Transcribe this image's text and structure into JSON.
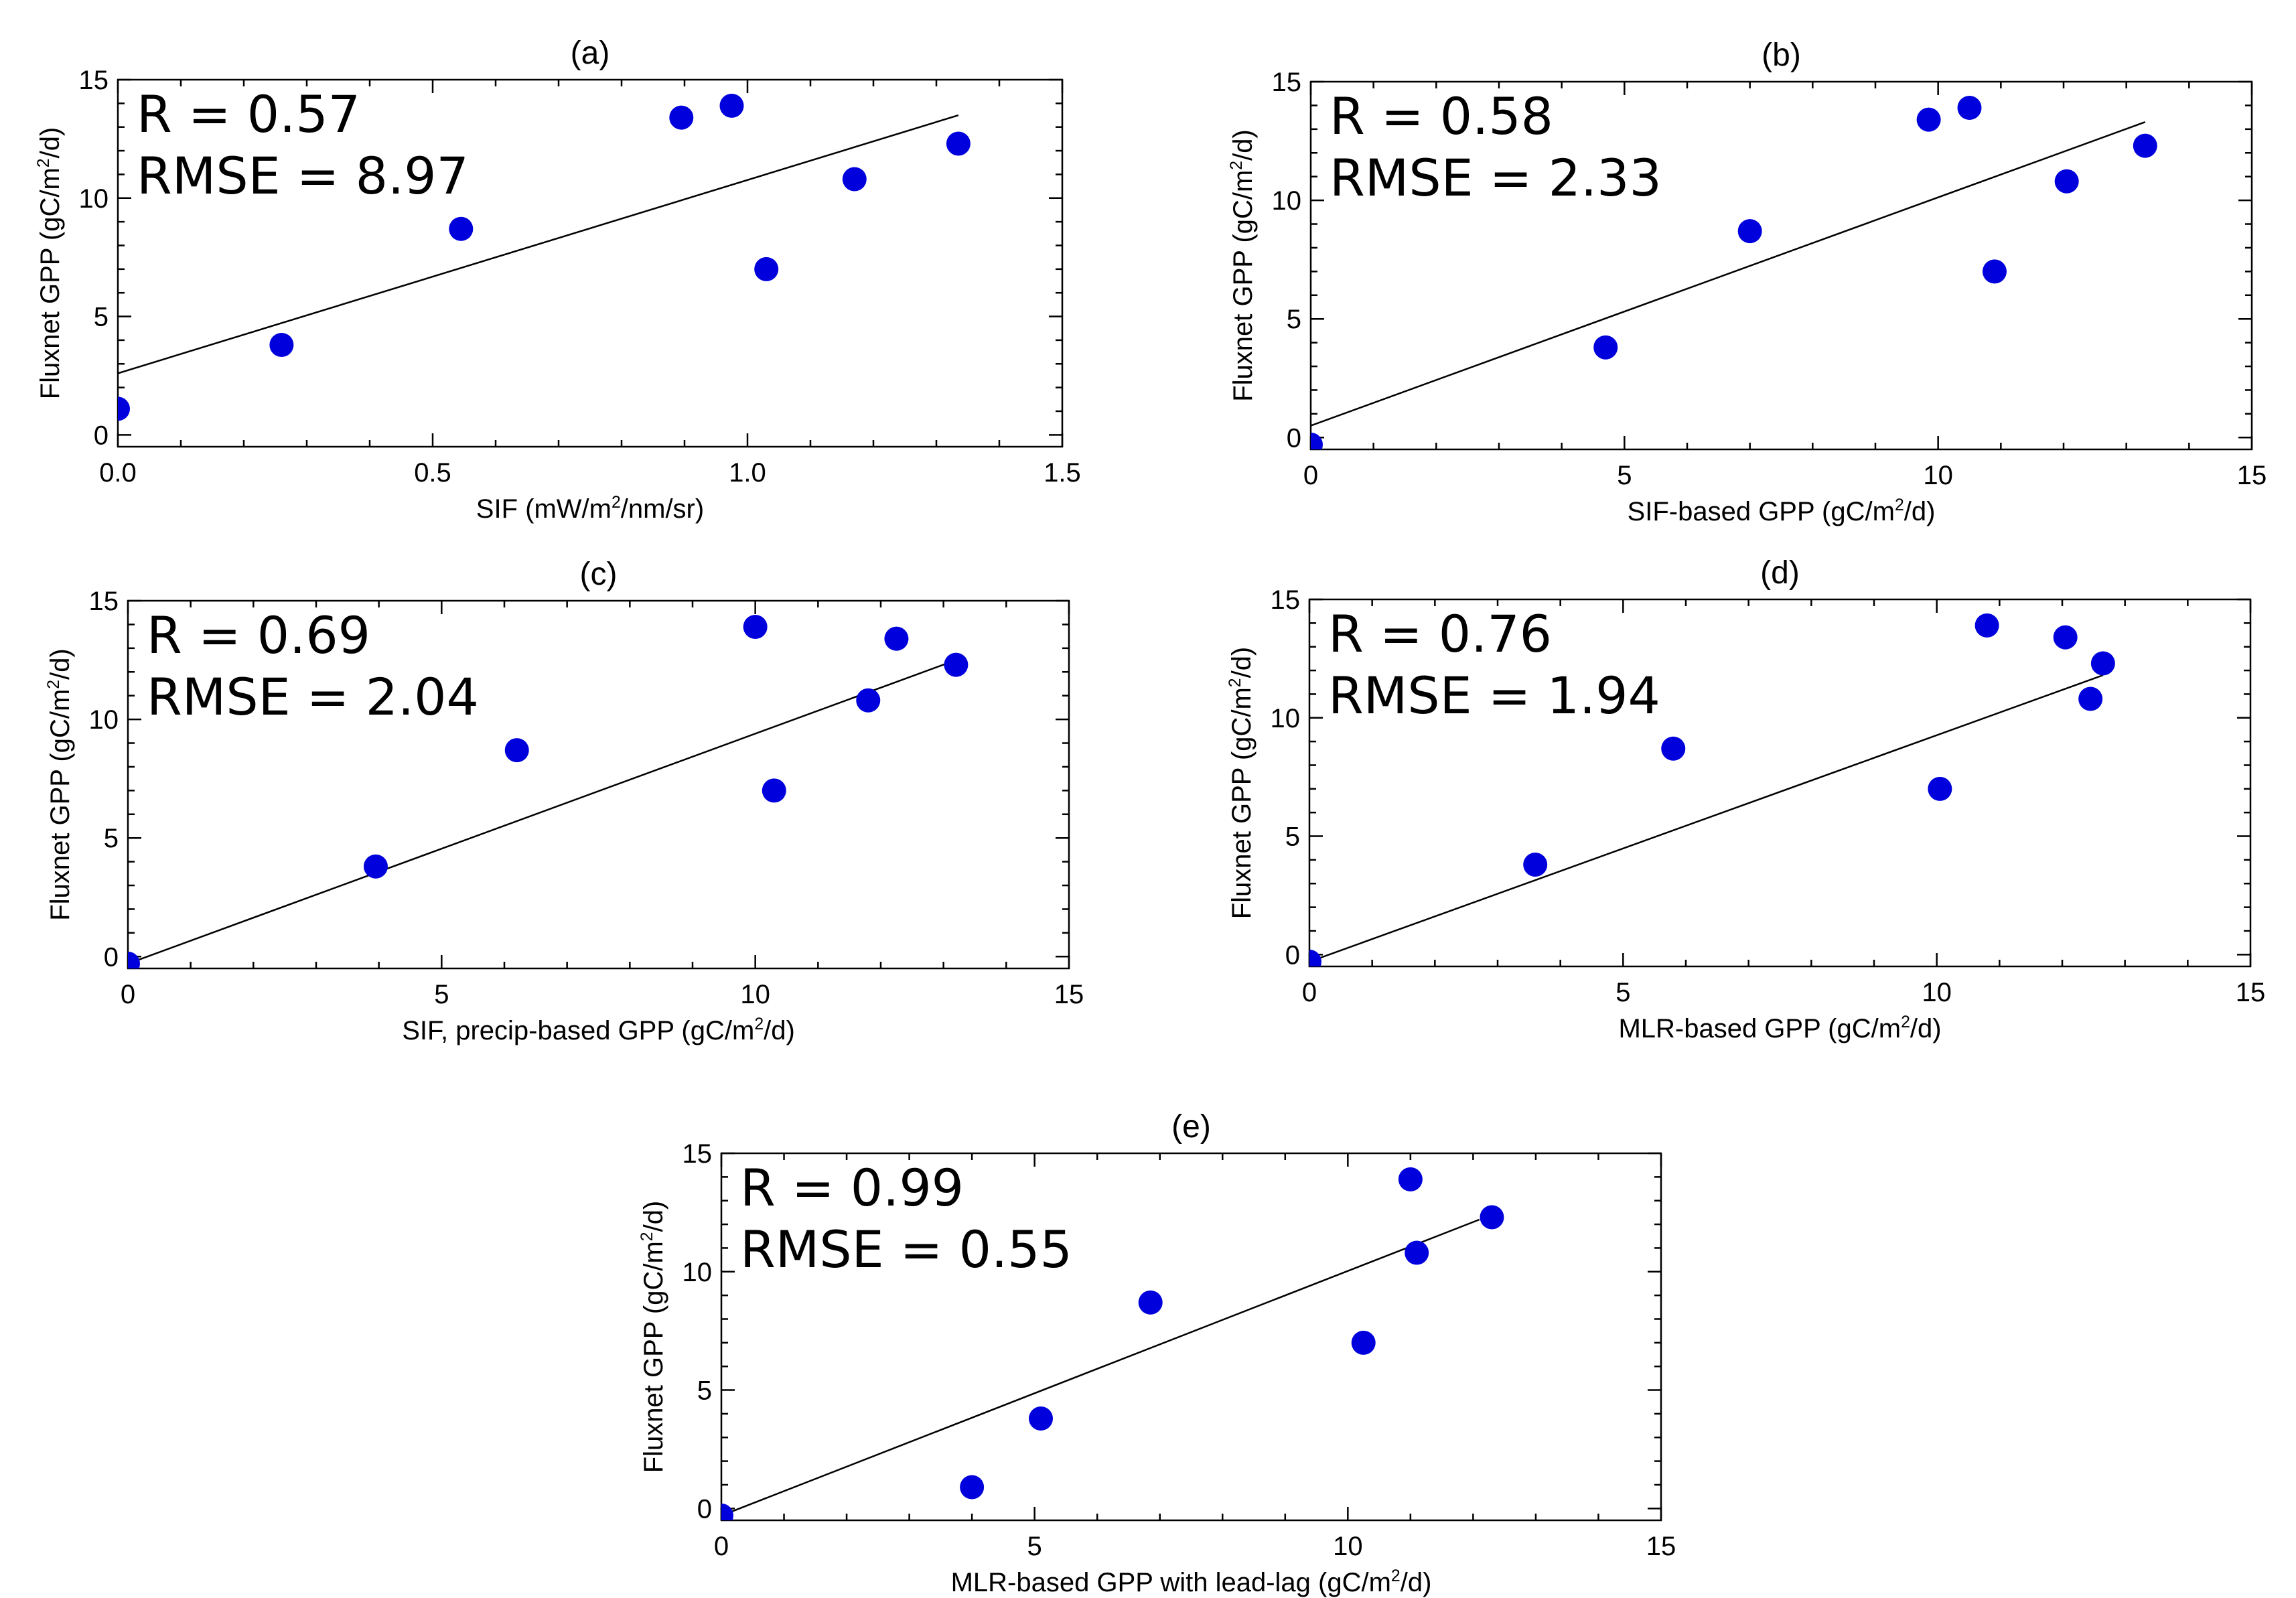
{
  "colors": {
    "point": "#0000dd",
    "axis": "#000000",
    "background": "#ffffff"
  },
  "chart_data": [
    {
      "type": "scatter",
      "title": "(a)",
      "xlabel": {
        "pre": "SIF (mW/m",
        "sup": "2",
        "post": "/nm/sr)"
      },
      "ylabel": {
        "pre": "Fluxnet GPP (gC/m",
        "sup": "2",
        "post": "/d)"
      },
      "xlim": [
        0,
        1.5
      ],
      "ylim": [
        -0.5,
        15
      ],
      "xticks": [
        0.0,
        0.5,
        1.0,
        1.5
      ],
      "xticklabels": [
        "0.0",
        "0.5",
        "1.0",
        "1.5"
      ],
      "yticks": [
        0,
        5,
        10,
        15
      ],
      "yticklabels": [
        "0",
        "5",
        "10",
        "15"
      ],
      "stats": {
        "r": "R = 0.57",
        "rmse": "RMSE = 8.97"
      },
      "x": [
        0.0,
        0.26,
        0.545,
        0.895,
        0.975,
        1.03,
        1.17,
        1.335
      ],
      "y": [
        1.1,
        3.8,
        8.7,
        13.4,
        13.9,
        7.0,
        10.8,
        12.3
      ],
      "fit": {
        "x": [
          0.0,
          1.335
        ],
        "y": [
          2.6,
          13.5
        ]
      }
    },
    {
      "type": "scatter",
      "title": "(b)",
      "xlabel": {
        "pre": "SIF-based GPP (gC/m",
        "sup": "2",
        "post": "/d)"
      },
      "ylabel": {
        "pre": "Fluxnet GPP (gC/m",
        "sup": "2",
        "post": "/d)"
      },
      "xlim": [
        0,
        15
      ],
      "ylim": [
        -0.5,
        15
      ],
      "xticks": [
        0,
        5,
        10,
        15
      ],
      "xticklabels": [
        "0",
        "5",
        "10",
        "15"
      ],
      "yticks": [
        0,
        5,
        10,
        15
      ],
      "yticklabels": [
        "0",
        "5",
        "10",
        "15"
      ],
      "stats": {
        "r": "R = 0.58",
        "rmse": "RMSE = 2.33"
      },
      "x": [
        0.0,
        4.7,
        7.0,
        9.85,
        10.5,
        10.9,
        12.05,
        13.3
      ],
      "y": [
        -0.3,
        3.8,
        8.7,
        13.4,
        13.9,
        7.0,
        10.8,
        12.3
      ],
      "fit": {
        "x": [
          0.0,
          13.3
        ],
        "y": [
          0.5,
          13.3
        ]
      }
    },
    {
      "type": "scatter",
      "title": "(c)",
      "xlabel": {
        "pre": "SIF, precip-based GPP (gC/m",
        "sup": "2",
        "post": "/d)"
      },
      "ylabel": {
        "pre": "Fluxnet GPP (gC/m",
        "sup": "2",
        "post": "/d)"
      },
      "xlim": [
        0,
        15
      ],
      "ylim": [
        -0.5,
        15
      ],
      "xticks": [
        0,
        5,
        10,
        15
      ],
      "xticklabels": [
        "0",
        "5",
        "10",
        "15"
      ],
      "yticks": [
        0,
        5,
        10,
        15
      ],
      "yticklabels": [
        "0",
        "5",
        "10",
        "15"
      ],
      "stats": {
        "r": "R = 0.69",
        "rmse": "RMSE = 2.04"
      },
      "x": [
        0.0,
        3.95,
        6.2,
        10.0,
        10.3,
        11.8,
        12.25,
        13.2
      ],
      "y": [
        -0.3,
        3.8,
        8.7,
        13.9,
        7.0,
        10.8,
        13.4,
        12.3
      ],
      "fit": {
        "x": [
          0.0,
          13.2
        ],
        "y": [
          -0.3,
          12.5
        ]
      }
    },
    {
      "type": "scatter",
      "title": "(d)",
      "xlabel": {
        "pre": "MLR-based GPP (gC/m",
        "sup": "2",
        "post": "/d)"
      },
      "ylabel": {
        "pre": "Fluxnet GPP (gC/m",
        "sup": "2",
        "post": "/d)"
      },
      "xlim": [
        0,
        15
      ],
      "ylim": [
        -0.5,
        15
      ],
      "xticks": [
        0,
        5,
        10,
        15
      ],
      "xticklabels": [
        "0",
        "5",
        "10",
        "15"
      ],
      "yticks": [
        0,
        5,
        10,
        15
      ],
      "yticklabels": [
        "0",
        "5",
        "10",
        "15"
      ],
      "stats": {
        "r": "R = 0.76",
        "rmse": "RMSE = 1.94"
      },
      "x": [
        0.0,
        3.6,
        5.8,
        10.05,
        10.8,
        12.05,
        12.45,
        12.65
      ],
      "y": [
        -0.3,
        3.8,
        8.7,
        7.0,
        13.9,
        13.4,
        10.8,
        12.3
      ],
      "fit": {
        "x": [
          0.0,
          12.65
        ],
        "y": [
          -0.3,
          11.8
        ]
      }
    },
    {
      "type": "scatter",
      "title": "(e)",
      "xlabel": {
        "pre": "MLR-based GPP with lead-lag (gC/m",
        "sup": "2",
        "post": "/d)"
      },
      "ylabel": {
        "pre": "Fluxnet GPP (gC/m",
        "sup": "2",
        "post": "/d)"
      },
      "xlim": [
        0,
        15
      ],
      "ylim": [
        -0.5,
        15
      ],
      "xticks": [
        0,
        5,
        10,
        15
      ],
      "xticklabels": [
        "0",
        "5",
        "10",
        "15"
      ],
      "yticks": [
        0,
        5,
        10,
        15
      ],
      "yticklabels": [
        "0",
        "5",
        "10",
        "15"
      ],
      "stats": {
        "r": "R = 0.99",
        "rmse": "RMSE = 0.55"
      },
      "x": [
        0.0,
        4.0,
        5.1,
        6.85,
        10.25,
        11.0,
        11.1,
        12.3
      ],
      "y": [
        -0.3,
        0.9,
        3.8,
        8.7,
        7.0,
        13.9,
        10.8,
        12.3
      ],
      "fit": {
        "x": [
          0.0,
          12.1
        ],
        "y": [
          -0.3,
          12.2
        ]
      }
    }
  ]
}
